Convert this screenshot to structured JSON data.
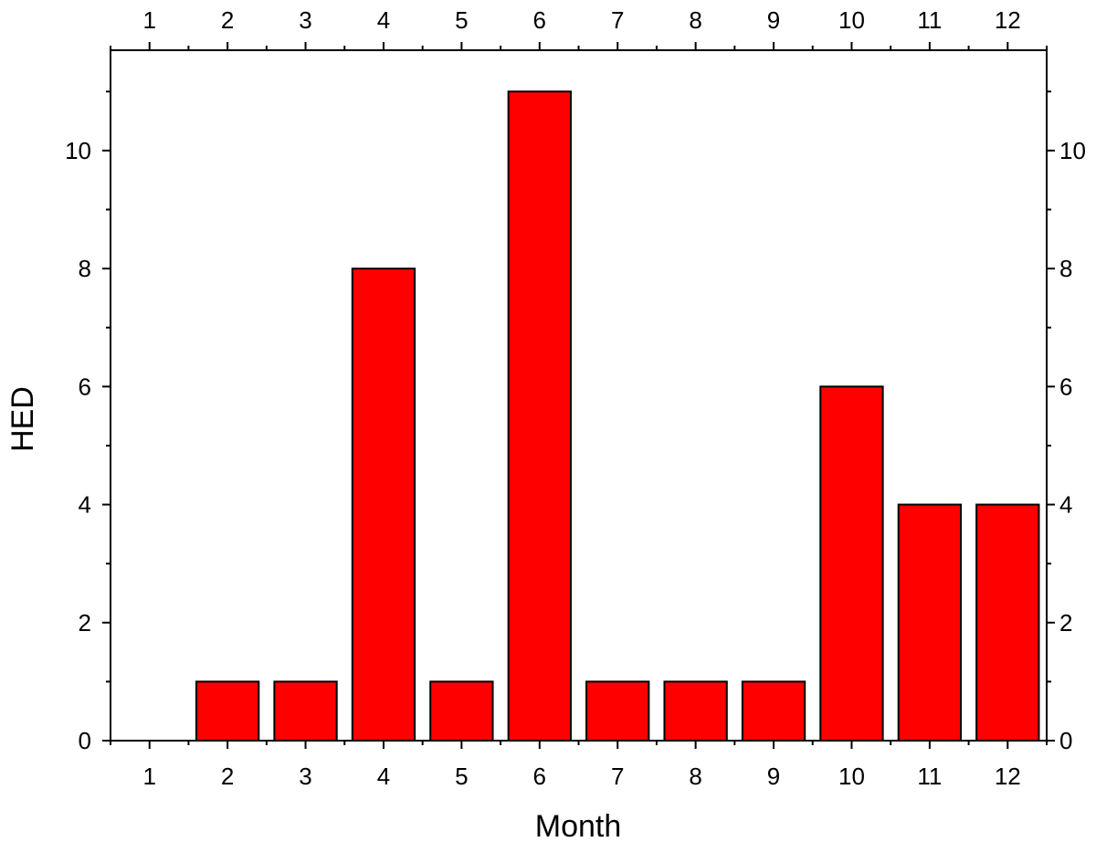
{
  "chart_data": {
    "type": "bar",
    "title": "",
    "xlabel": "Month",
    "ylabel": "HED",
    "categories": [
      "1",
      "2",
      "3",
      "4",
      "5",
      "6",
      "7",
      "8",
      "9",
      "10",
      "11",
      "12"
    ],
    "values": [
      0,
      1,
      1,
      8,
      1,
      11,
      1,
      1,
      1,
      6,
      4,
      4
    ],
    "ylim": [
      0,
      11.7
    ],
    "yticks": [
      "0",
      "2",
      "4",
      "6",
      "8",
      "10"
    ],
    "bar_color": "#ff0000",
    "bar_edge_color": "#000000",
    "grid": false,
    "legend": "none",
    "mirror_axes": "top and right axes repeat the tick labels"
  }
}
